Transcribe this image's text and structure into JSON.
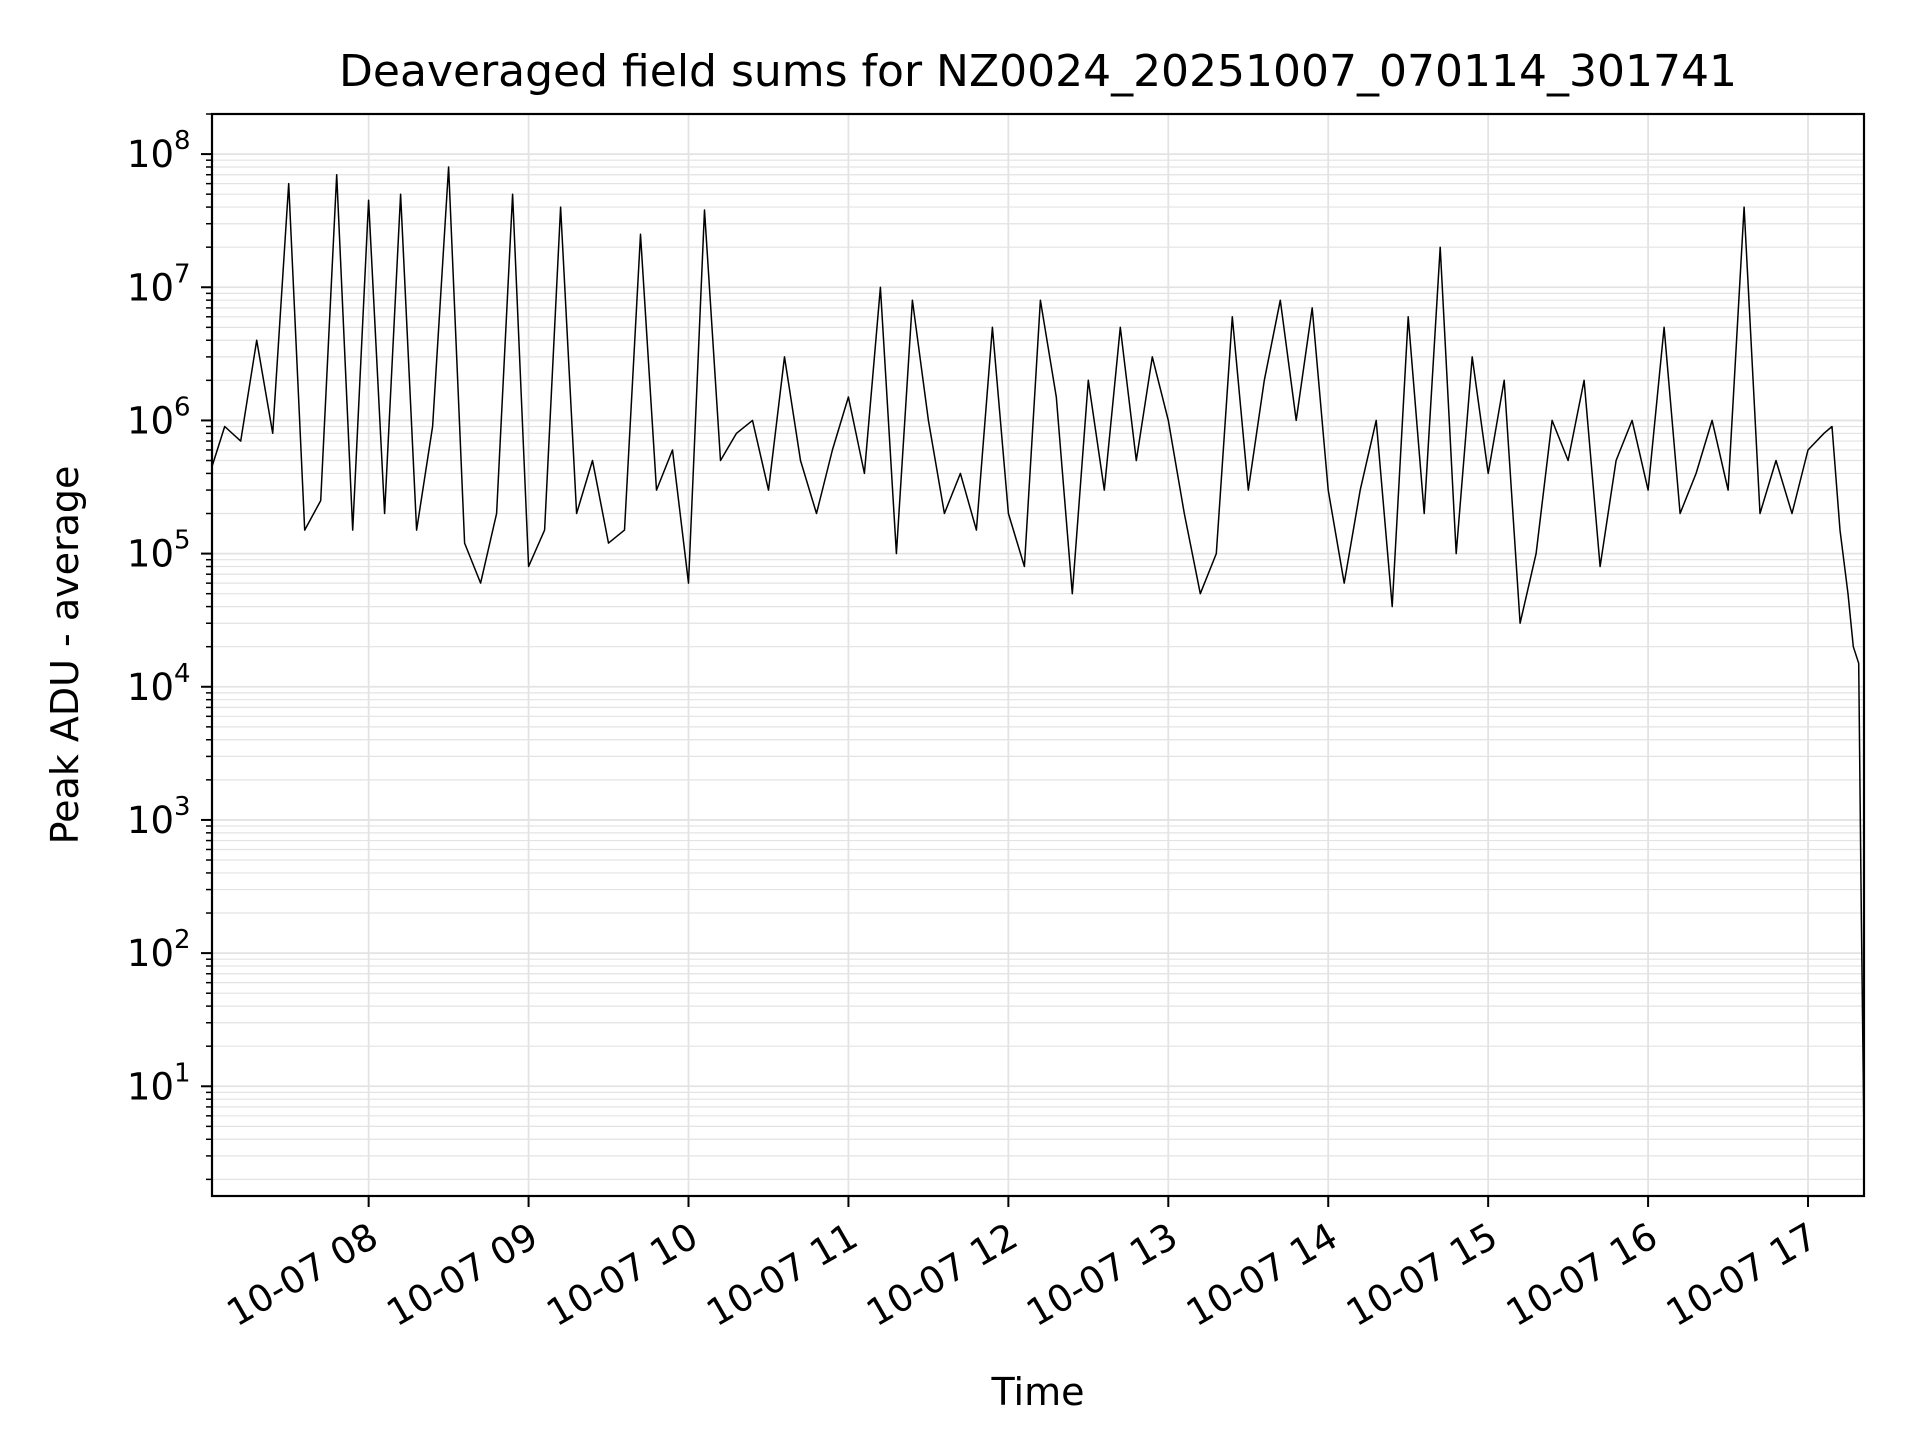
{
  "chart_data": {
    "type": "line",
    "title": "Deaveraged field sums for NZ0024_20251007_070114_301741",
    "xlabel": "Time",
    "ylabel": "Peak ADU - average",
    "x_scale": "time",
    "y_scale": "log",
    "x_range": [
      "2025-10-07T07:01:14",
      "2025-10-07T17:21:00"
    ],
    "ylim": [
      1.5,
      200000000.0
    ],
    "grid": true,
    "legend": "none",
    "line_color": "#000000",
    "grid_color": "#e3e3e3",
    "x_ticks": [
      {
        "t": "2025-10-07T08:00",
        "label": "10-07 08"
      },
      {
        "t": "2025-10-07T09:00",
        "label": "10-07 09"
      },
      {
        "t": "2025-10-07T10:00",
        "label": "10-07 10"
      },
      {
        "t": "2025-10-07T11:00",
        "label": "10-07 11"
      },
      {
        "t": "2025-10-07T12:00",
        "label": "10-07 12"
      },
      {
        "t": "2025-10-07T13:00",
        "label": "10-07 13"
      },
      {
        "t": "2025-10-07T14:00",
        "label": "10-07 14"
      },
      {
        "t": "2025-10-07T15:00",
        "label": "10-07 15"
      },
      {
        "t": "2025-10-07T16:00",
        "label": "10-07 16"
      },
      {
        "t": "2025-10-07T17:00",
        "label": "10-07 17"
      }
    ],
    "y_ticks": [
      {
        "value": 10,
        "base": "10",
        "exp": "1"
      },
      {
        "value": 100,
        "base": "10",
        "exp": "2"
      },
      {
        "value": 1000,
        "base": "10",
        "exp": "3"
      },
      {
        "value": 10000,
        "base": "10",
        "exp": "4"
      },
      {
        "value": 100000,
        "base": "10",
        "exp": "5"
      },
      {
        "value": 1000000,
        "base": "10",
        "exp": "6"
      },
      {
        "value": 10000000,
        "base": "10",
        "exp": "7"
      },
      {
        "value": 100000000,
        "base": "10",
        "exp": "8"
      }
    ],
    "series": [
      {
        "x": [
          "2025-10-07T07:01:14",
          "2025-10-07T07:06",
          "2025-10-07T07:12",
          "2025-10-07T07:18",
          "2025-10-07T07:24",
          "2025-10-07T07:30",
          "2025-10-07T07:36",
          "2025-10-07T07:42",
          "2025-10-07T07:48",
          "2025-10-07T07:54",
          "2025-10-07T08:00",
          "2025-10-07T08:06",
          "2025-10-07T08:12",
          "2025-10-07T08:18",
          "2025-10-07T08:24",
          "2025-10-07T08:30",
          "2025-10-07T08:36",
          "2025-10-07T08:42",
          "2025-10-07T08:48",
          "2025-10-07T08:54",
          "2025-10-07T09:00",
          "2025-10-07T09:06",
          "2025-10-07T09:12",
          "2025-10-07T09:18",
          "2025-10-07T09:24",
          "2025-10-07T09:30",
          "2025-10-07T09:36",
          "2025-10-07T09:42",
          "2025-10-07T09:48",
          "2025-10-07T09:54",
          "2025-10-07T10:00",
          "2025-10-07T10:06",
          "2025-10-07T10:12",
          "2025-10-07T10:18",
          "2025-10-07T10:24",
          "2025-10-07T10:30",
          "2025-10-07T10:36",
          "2025-10-07T10:42",
          "2025-10-07T10:48",
          "2025-10-07T10:54",
          "2025-10-07T11:00",
          "2025-10-07T11:06",
          "2025-10-07T11:12",
          "2025-10-07T11:18",
          "2025-10-07T11:24",
          "2025-10-07T11:30",
          "2025-10-07T11:36",
          "2025-10-07T11:42",
          "2025-10-07T11:48",
          "2025-10-07T11:54",
          "2025-10-07T12:00",
          "2025-10-07T12:06",
          "2025-10-07T12:12",
          "2025-10-07T12:18",
          "2025-10-07T12:24",
          "2025-10-07T12:30",
          "2025-10-07T12:36",
          "2025-10-07T12:42",
          "2025-10-07T12:48",
          "2025-10-07T12:54",
          "2025-10-07T13:00",
          "2025-10-07T13:06",
          "2025-10-07T13:12",
          "2025-10-07T13:18",
          "2025-10-07T13:24",
          "2025-10-07T13:30",
          "2025-10-07T13:36",
          "2025-10-07T13:42",
          "2025-10-07T13:48",
          "2025-10-07T13:54",
          "2025-10-07T14:00",
          "2025-10-07T14:06",
          "2025-10-07T14:12",
          "2025-10-07T14:18",
          "2025-10-07T14:24",
          "2025-10-07T14:30",
          "2025-10-07T14:36",
          "2025-10-07T14:42",
          "2025-10-07T14:48",
          "2025-10-07T14:54",
          "2025-10-07T15:00",
          "2025-10-07T15:06",
          "2025-10-07T15:12",
          "2025-10-07T15:18",
          "2025-10-07T15:24",
          "2025-10-07T15:30",
          "2025-10-07T15:36",
          "2025-10-07T15:42",
          "2025-10-07T15:48",
          "2025-10-07T15:54",
          "2025-10-07T16:00",
          "2025-10-07T16:06",
          "2025-10-07T16:12",
          "2025-10-07T16:18",
          "2025-10-07T16:24",
          "2025-10-07T16:30",
          "2025-10-07T16:36",
          "2025-10-07T16:42",
          "2025-10-07T16:48",
          "2025-10-07T16:54",
          "2025-10-07T17:00",
          "2025-10-07T17:06",
          "2025-10-07T17:09",
          "2025-10-07T17:12",
          "2025-10-07T17:15",
          "2025-10-07T17:17",
          "2025-10-07T17:19",
          "2025-10-07T17:20",
          "2025-10-07T17:21"
        ],
        "values": [
          450000,
          900000,
          700000,
          4000000,
          800000,
          60000000,
          150000,
          250000,
          70000000,
          150000,
          45000000,
          200000,
          50000000,
          150000,
          900000,
          80000000,
          120000,
          60000,
          200000,
          50000000,
          80000,
          150000,
          40000000,
          200000,
          500000,
          120000,
          150000,
          25000000,
          300000,
          600000,
          60000,
          38000000,
          500000,
          800000,
          1000000,
          300000,
          3000000,
          500000,
          200000,
          600000,
          1500000,
          400000,
          10000000,
          100000,
          8000000,
          1000000,
          200000,
          400000,
          150000,
          5000000,
          200000,
          80000,
          8000000,
          1500000,
          50000,
          2000000,
          300000,
          5000000,
          500000,
          3000000,
          1000000,
          200000,
          50000,
          100000,
          6000000,
          300000,
          2000000,
          8000000,
          1000000,
          7000000,
          300000,
          60000,
          300000,
          1000000,
          40000,
          6000000,
          200000,
          20000000,
          100000,
          3000000,
          400000,
          2000000,
          30000,
          100000,
          1000000,
          500000,
          2000000,
          80000,
          500000,
          1000000,
          300000,
          5000000,
          200000,
          400000,
          1000000,
          300000,
          40000000,
          200000,
          500000,
          200000,
          600000,
          800000,
          900000,
          150000,
          50000,
          20000,
          15000,
          200,
          4
        ]
      }
    ]
  }
}
